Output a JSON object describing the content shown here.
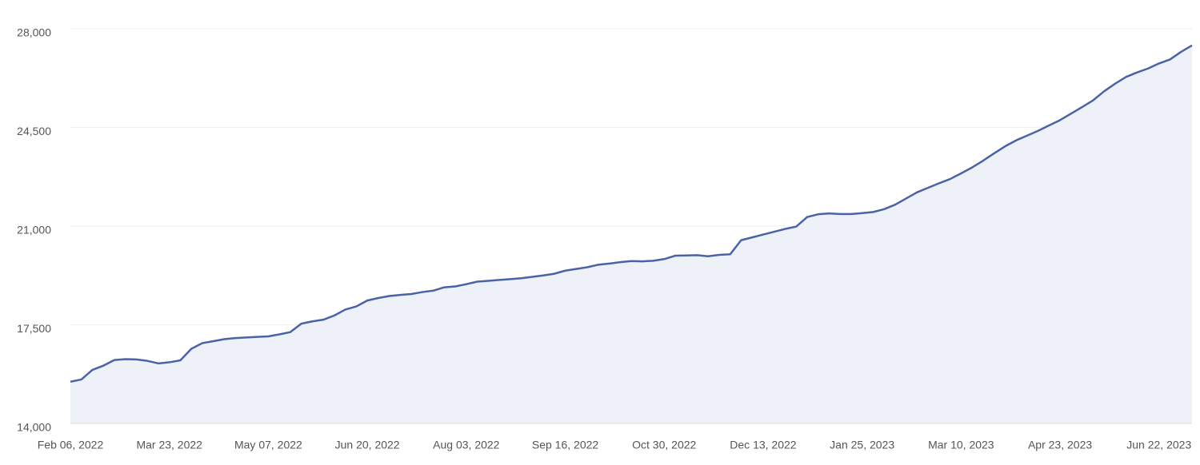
{
  "chart_data": {
    "type": "area",
    "categories": [
      "Feb 06, 2022",
      null,
      null,
      null,
      null,
      null,
      null,
      null,
      null,
      "Mar 23, 2022",
      null,
      null,
      null,
      null,
      null,
      null,
      null,
      null,
      "May 07, 2022",
      null,
      null,
      null,
      null,
      null,
      null,
      null,
      null,
      "Jun 20, 2022",
      null,
      null,
      null,
      null,
      null,
      null,
      null,
      null,
      "Aug 03, 2022",
      null,
      null,
      null,
      null,
      null,
      null,
      null,
      null,
      "Sep 16, 2022",
      null,
      null,
      null,
      null,
      null,
      null,
      null,
      null,
      "Oct 30, 2022",
      null,
      null,
      null,
      null,
      null,
      null,
      null,
      null,
      "Dec 13, 2022",
      null,
      null,
      null,
      null,
      null,
      null,
      null,
      null,
      "Jan 25, 2023",
      null,
      null,
      null,
      null,
      null,
      null,
      null,
      null,
      "Mar 10, 2023",
      null,
      null,
      null,
      null,
      null,
      null,
      null,
      null,
      "Apr 23, 2023",
      null,
      null,
      null,
      null,
      null,
      null,
      null,
      null,
      "Jun 22, 2023",
      null,
      null,
      null
    ],
    "values": [
      15480,
      15560,
      15900,
      16050,
      16250,
      16280,
      16270,
      16220,
      16130,
      16170,
      16240,
      16650,
      16850,
      16920,
      16990,
      17030,
      17050,
      17070,
      17090,
      17160,
      17240,
      17540,
      17620,
      17680,
      17830,
      18040,
      18150,
      18360,
      18450,
      18520,
      18560,
      18590,
      18660,
      18710,
      18830,
      18860,
      18940,
      19030,
      19060,
      19090,
      19120,
      19150,
      19200,
      19250,
      19310,
      19420,
      19480,
      19540,
      19630,
      19670,
      19720,
      19760,
      19750,
      19770,
      19830,
      19950,
      19960,
      19970,
      19930,
      19980,
      20000,
      20500,
      20600,
      20700,
      20800,
      20900,
      20980,
      21320,
      21420,
      21450,
      21430,
      21430,
      21460,
      21500,
      21600,
      21760,
      21980,
      22200,
      22360,
      22520,
      22670,
      22870,
      23080,
      23320,
      23580,
      23830,
      24040,
      24210,
      24380,
      24570,
      24760,
      24990,
      25220,
      25460,
      25780,
      26050,
      26290,
      26450,
      26590,
      26770,
      26910,
      27180,
      27410
    ],
    "color": "#4a63a6",
    "fill": "#eef1f8",
    "ylim": [
      14000,
      28000
    ],
    "yticks": [
      {
        "value": 14000,
        "label": "14,000"
      },
      {
        "value": 17500,
        "label": "17,500"
      },
      {
        "value": 21000,
        "label": "21,000"
      },
      {
        "value": 24500,
        "label": "24,500"
      },
      {
        "value": 28000,
        "label": "28,000"
      }
    ],
    "grid": true
  }
}
